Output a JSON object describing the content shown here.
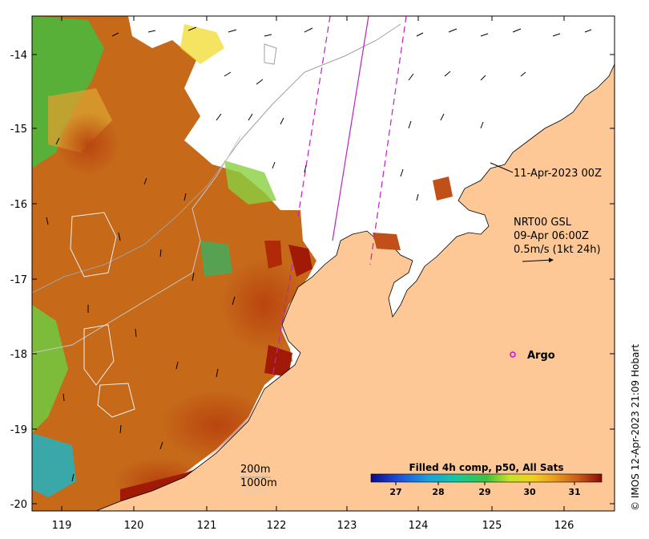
{
  "map": {
    "lon_ticks": [
      "119",
      "120",
      "121",
      "122",
      "123",
      "124",
      "125",
      "126"
    ],
    "lat_ticks": [
      "-14",
      "-15",
      "-16",
      "-17",
      "-18",
      "-19",
      "-20"
    ],
    "lon_range": [
      118.6,
      126.8
    ],
    "lat_range": [
      -20.2,
      -13.6
    ]
  },
  "annotations": {
    "date_label": "11-Apr-2023 00Z",
    "current_title": "NRT00 GSL",
    "current_time": "09-Apr 06:00Z",
    "current_scale": "0.5m/s (1kt 24h)",
    "argo_label": "Argo",
    "depth_200": "200m",
    "depth_1000": "1000m",
    "credit": "© IMOS 12-Apr-2023 21:09 Hobart"
  },
  "colorbar": {
    "title": "Filled 4h comp, p50, All Sats",
    "ticks": [
      "27",
      "28",
      "29",
      "30",
      "31"
    ],
    "range": [
      26.3,
      31.7
    ]
  },
  "colors": {
    "land": "#fdc895",
    "sst_warm": "#c8701a",
    "sst_hot": "#a01a05",
    "sst_cool": "#36a236",
    "argo": "#e000e0",
    "track": "#c020c0"
  }
}
